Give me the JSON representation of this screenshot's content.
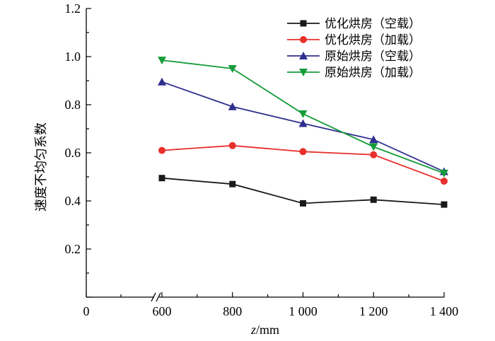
{
  "chart_data": {
    "type": "line",
    "xlabel_var": "z",
    "xlabel_unit": "/mm",
    "ylabel": "速度不均匀系数",
    "x": [
      600,
      800,
      1000,
      1200,
      1400
    ],
    "xlim": [
      0,
      1400
    ],
    "ylim": [
      0,
      1.2
    ],
    "x_axis_break": true,
    "x_ticks": [
      {
        "value": 0,
        "label": "0"
      },
      {
        "value": 600,
        "label": "600"
      },
      {
        "value": 800,
        "label": "800"
      },
      {
        "value": 1000,
        "label": "1 000"
      },
      {
        "value": 1200,
        "label": "1 200"
      },
      {
        "value": 1400,
        "label": "1 400"
      }
    ],
    "y_ticks": [
      "0.2",
      "0.4",
      "0.6",
      "0.8",
      "1.0",
      "1.2"
    ],
    "grid": false,
    "legend_position": "top-right",
    "series": [
      {
        "name": "优化烘房（空载）",
        "marker": "square",
        "color": "#1a1a1a",
        "values": [
          0.495,
          0.47,
          0.39,
          0.405,
          0.385
        ]
      },
      {
        "name": "优化烘房（加载）",
        "marker": "circle",
        "color": "#e8302c",
        "values": [
          0.61,
          0.63,
          0.605,
          0.592,
          0.482
        ]
      },
      {
        "name": "原始烘房（空载）",
        "marker": "triangle-up",
        "color": "#2f2f8f",
        "values": [
          0.895,
          0.792,
          0.722,
          0.655,
          0.522
        ]
      },
      {
        "name": "原始烘房（加载）",
        "marker": "triangle-down",
        "color": "#169c3a",
        "values": [
          0.985,
          0.95,
          0.762,
          0.625,
          0.515
        ]
      }
    ]
  }
}
